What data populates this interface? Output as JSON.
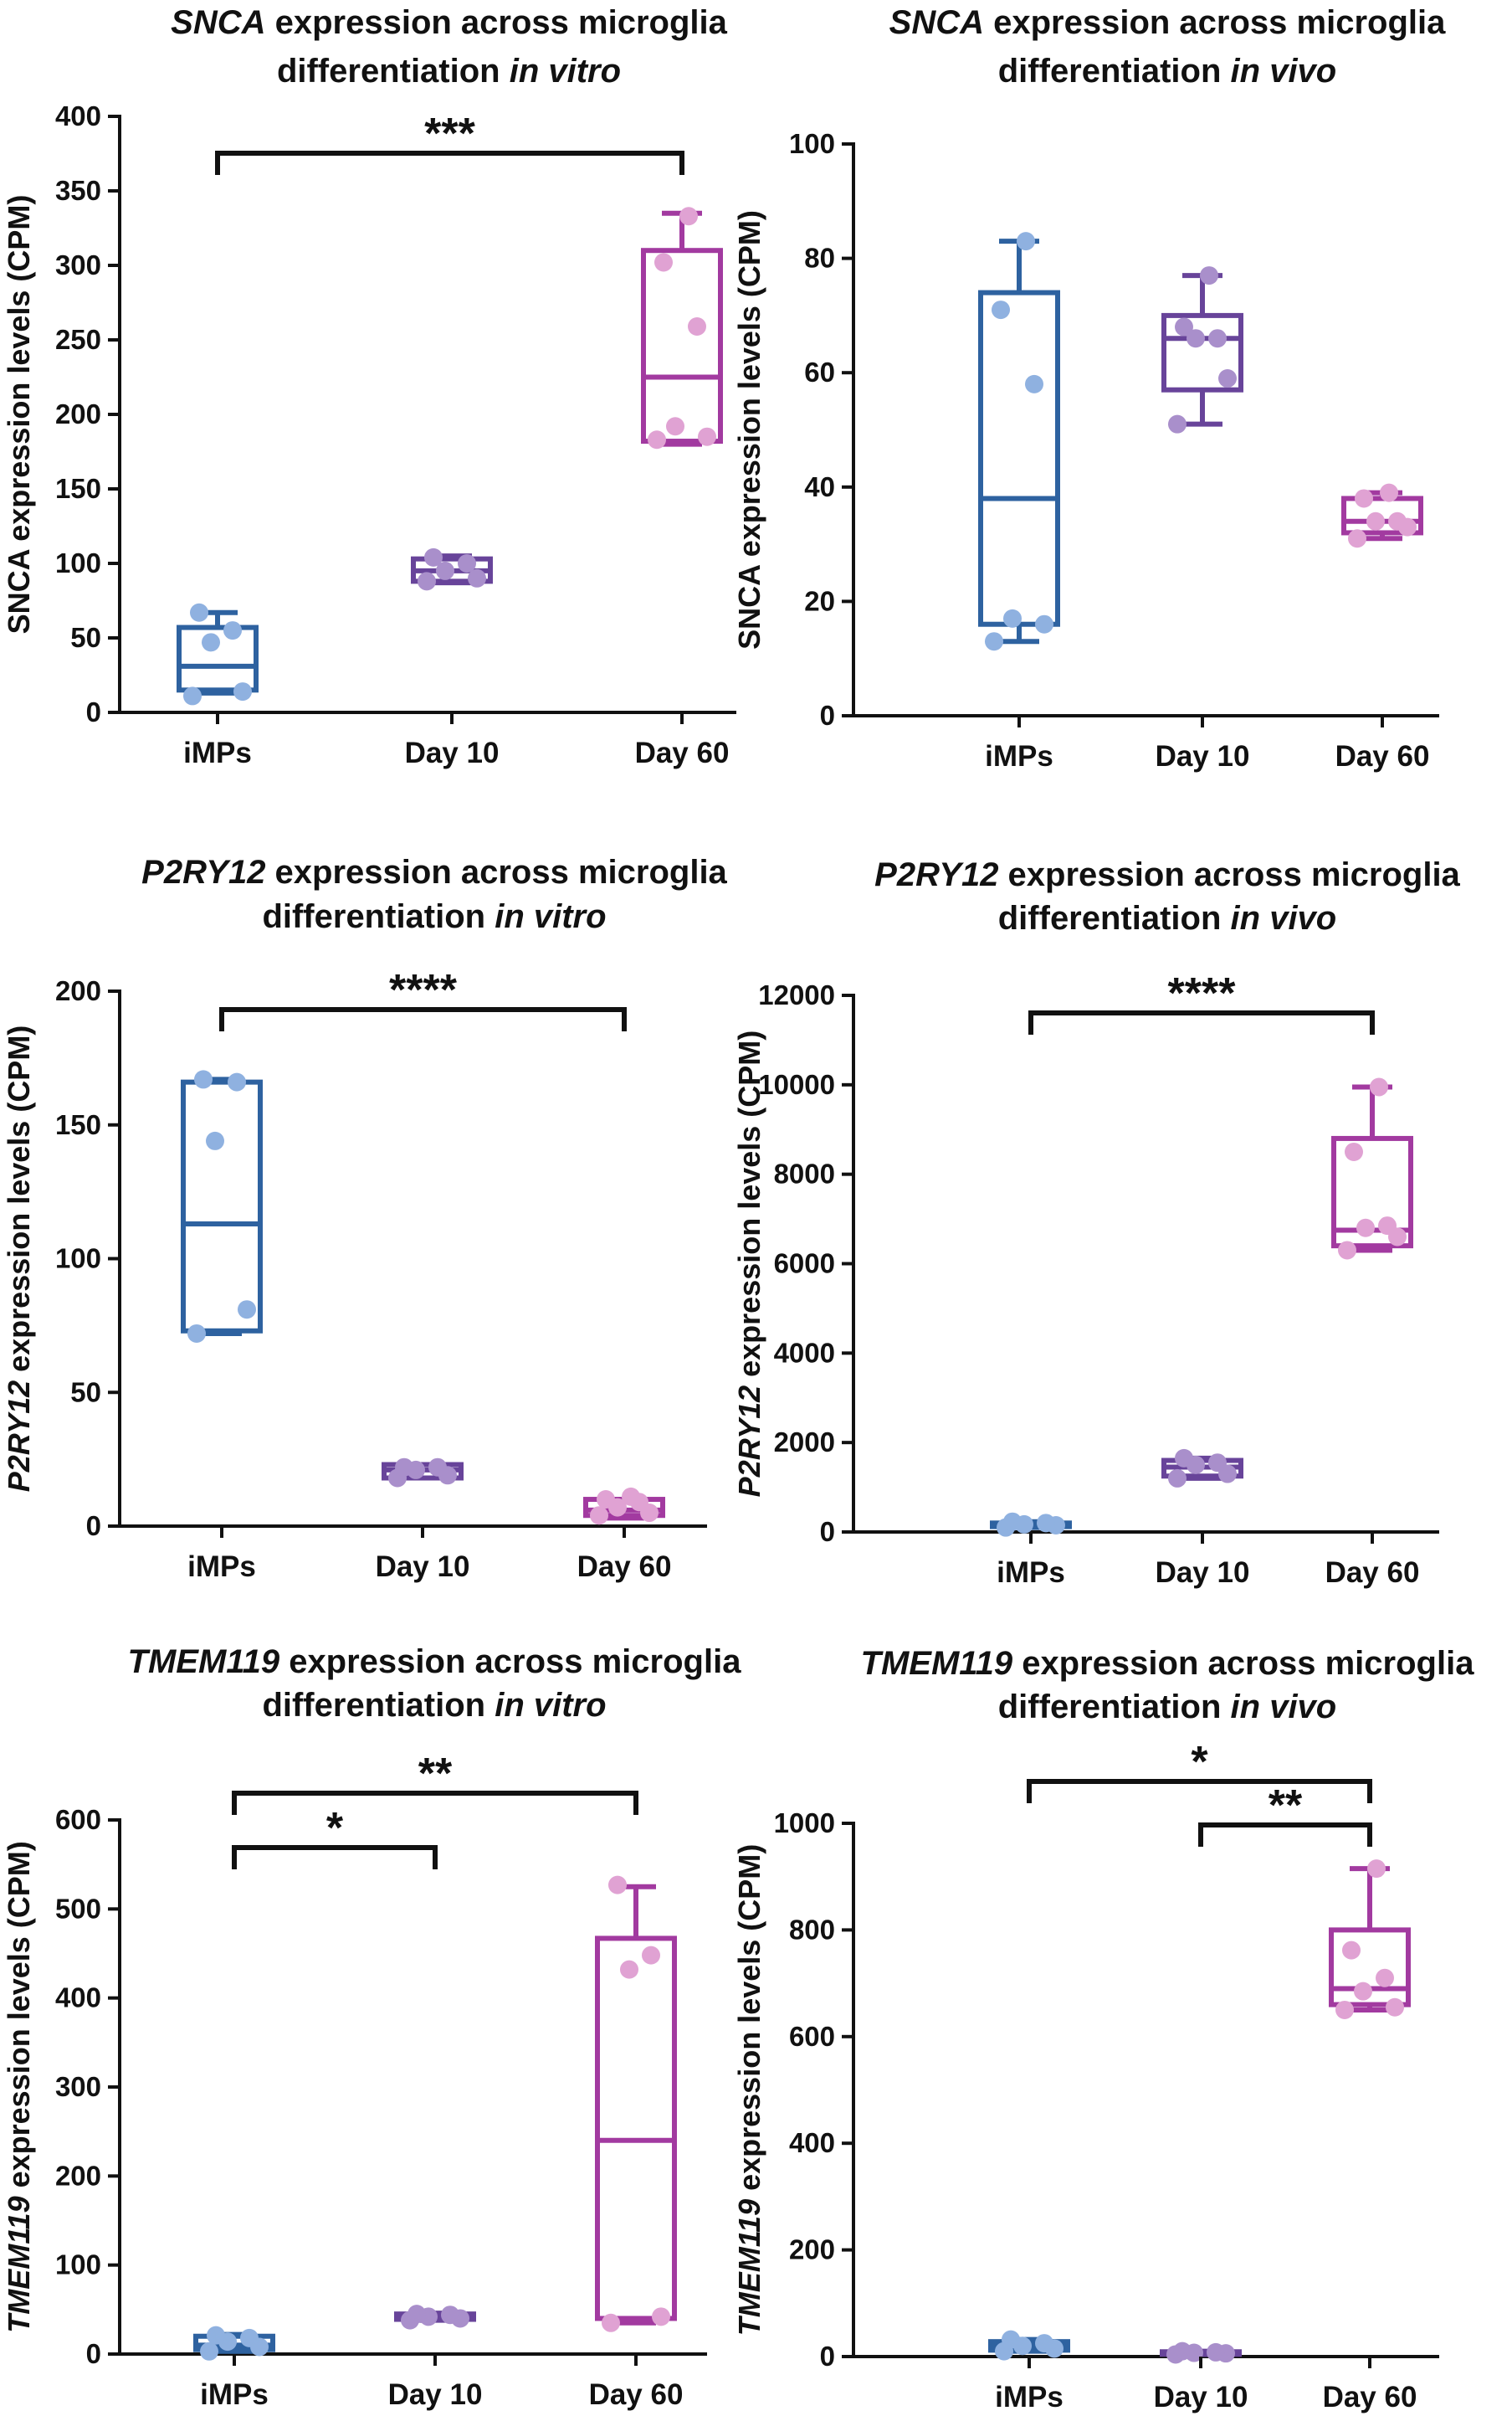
{
  "chart_data": [
    {
      "type": "box",
      "title_parts": [
        {
          "t": "SNCA",
          "i": true
        },
        {
          "t": " expression across microglia",
          "i": false
        }
      ],
      "title_line2": [
        {
          "t": "differentiation ",
          "i": false
        },
        {
          "t": "in vitro",
          "i": true
        }
      ],
      "ylabel_parts": [
        {
          "t": "SNCA expression levels (CPM)",
          "i": false
        }
      ],
      "ylim": [
        0,
        400
      ],
      "yticks": [
        "0",
        "50",
        "100",
        "150",
        "200",
        "250",
        "300",
        "350",
        "400"
      ],
      "categories": [
        "iMPs",
        "Day 10",
        "Day 60"
      ],
      "boxes": [
        {
          "min": 13,
          "q1": 15,
          "median": 31,
          "q3": 57,
          "max": 67
        },
        {
          "min": 87,
          "q1": 88,
          "median": 95,
          "q3": 103,
          "max": 105
        },
        {
          "min": 180,
          "q1": 182,
          "median": 225,
          "q3": 310,
          "max": 335
        }
      ],
      "points": [
        [
          11,
          14,
          47,
          55,
          67
        ],
        [
          88,
          90,
          95,
          100,
          104
        ],
        [
          183,
          185,
          192,
          259,
          302,
          333
        ]
      ],
      "significance": [
        {
          "from": 0,
          "to": 2,
          "label": "***",
          "level": 0
        }
      ]
    },
    {
      "type": "box",
      "title_parts": [
        {
          "t": "SNCA",
          "i": true
        },
        {
          "t": " expression across microglia",
          "i": false
        }
      ],
      "title_line2": [
        {
          "t": "differentiation ",
          "i": false
        },
        {
          "t": "in vivo",
          "i": true
        }
      ],
      "ylabel_parts": [
        {
          "t": "SNCA expression levels (CPM)",
          "i": false
        }
      ],
      "ylim": [
        0,
        100
      ],
      "yticks": [
        "0",
        "20",
        "40",
        "60",
        "80",
        "100"
      ],
      "categories": [
        "iMPs",
        "Day 10",
        "Day 60"
      ],
      "boxes": [
        {
          "min": 13,
          "q1": 16,
          "median": 38,
          "q3": 74,
          "max": 83
        },
        {
          "min": 51,
          "q1": 57,
          "median": 66,
          "q3": 70,
          "max": 77
        },
        {
          "min": 31,
          "q1": 32,
          "median": 34,
          "q3": 38,
          "max": 39
        }
      ],
      "points": [
        [
          13,
          16,
          17,
          58,
          71,
          83
        ],
        [
          51,
          59,
          66,
          66,
          68,
          77
        ],
        [
          31,
          33,
          34,
          34,
          38,
          39
        ]
      ],
      "significance": []
    },
    {
      "type": "box",
      "title_parts": [
        {
          "t": "P2RY12",
          "i": true
        },
        {
          "t": " expression across microglia",
          "i": false
        }
      ],
      "title_line2": [
        {
          "t": "differentiation ",
          "i": false
        },
        {
          "t": "in vitro",
          "i": true
        }
      ],
      "ylabel_parts": [
        {
          "t": "P2RY12",
          "i": true
        },
        {
          "t": " expression levels (CPM)",
          "i": false
        }
      ],
      "ylim": [
        0,
        200
      ],
      "yticks": [
        "0",
        "50",
        "100",
        "150",
        "200"
      ],
      "categories": [
        "iMPs",
        "Day 10",
        "Day 60"
      ],
      "boxes": [
        {
          "min": 72,
          "q1": 73,
          "median": 113,
          "q3": 166,
          "max": 167
        },
        {
          "min": 18,
          "q1": 18,
          "median": 21,
          "q3": 23,
          "max": 23
        },
        {
          "min": 3,
          "q1": 4,
          "median": 6,
          "q3": 10,
          "max": 10
        }
      ],
      "points": [
        [
          72,
          81,
          144,
          166,
          167
        ],
        [
          18,
          19,
          21,
          22,
          22
        ],
        [
          4,
          5,
          7,
          9,
          10,
          11
        ]
      ],
      "significance": [
        {
          "from": 0,
          "to": 2,
          "label": "****",
          "level": 0
        }
      ]
    },
    {
      "type": "box",
      "title_parts": [
        {
          "t": "P2RY12",
          "i": true
        },
        {
          "t": " expression across microglia",
          "i": false
        }
      ],
      "title_line2": [
        {
          "t": "differentiation ",
          "i": false
        },
        {
          "t": "in vivo",
          "i": true
        }
      ],
      "ylabel_parts": [
        {
          "t": "P2RY12",
          "i": true
        },
        {
          "t": " expression levels (CPM)",
          "i": false
        }
      ],
      "ylim": [
        0,
        12000
      ],
      "yticks": [
        "0",
        "2000",
        "4000",
        "6000",
        "8000",
        "10000",
        "12000"
      ],
      "categories": [
        "iMPs",
        "Day 10",
        "Day 60"
      ],
      "boxes": [
        {
          "min": 100,
          "q1": 120,
          "median": 160,
          "q3": 200,
          "max": 230
        },
        {
          "min": 1200,
          "q1": 1250,
          "median": 1450,
          "q3": 1600,
          "max": 1650
        },
        {
          "min": 6300,
          "q1": 6400,
          "median": 6750,
          "q3": 8800,
          "max": 9950
        }
      ],
      "points": [
        [
          100,
          150,
          170,
          200,
          230
        ],
        [
          1200,
          1300,
          1500,
          1550,
          1650
        ],
        [
          6300,
          6600,
          6800,
          6850,
          8500,
          9950
        ]
      ],
      "significance": [
        {
          "from": 0,
          "to": 2,
          "label": "****",
          "level": 0
        }
      ]
    },
    {
      "type": "box",
      "title_parts": [
        {
          "t": "TMEM119",
          "i": true
        },
        {
          "t": " expression across microglia",
          "i": false
        }
      ],
      "title_line2": [
        {
          "t": "differentiation ",
          "i": false
        },
        {
          "t": "in vitro",
          "i": true
        }
      ],
      "ylabel_parts": [
        {
          "t": "TMEM119",
          "i": true
        },
        {
          "t": " expression levels (CPM)",
          "i": false
        }
      ],
      "ylim": [
        0,
        600
      ],
      "yticks": [
        "0",
        "100",
        "200",
        "300",
        "400",
        "500",
        "600"
      ],
      "categories": [
        "iMPs",
        "Day 10",
        "Day 60"
      ],
      "boxes": [
        {
          "min": 3,
          "q1": 5,
          "median": 10,
          "q3": 20,
          "max": 22
        },
        {
          "min": 38,
          "q1": 39,
          "median": 42,
          "q3": 45,
          "max": 46
        },
        {
          "min": 35,
          "q1": 40,
          "median": 240,
          "q3": 467,
          "max": 525
        }
      ],
      "points": [
        [
          3,
          8,
          14,
          18,
          21
        ],
        [
          38,
          40,
          42,
          44,
          45
        ],
        [
          35,
          42,
          432,
          448,
          527
        ]
      ],
      "significance": [
        {
          "from": 0,
          "to": 1,
          "label": "*",
          "level": 0
        },
        {
          "from": 0,
          "to": 2,
          "label": "**",
          "level": 1
        }
      ]
    },
    {
      "type": "box",
      "title_parts": [
        {
          "t": "TMEM119",
          "i": true
        },
        {
          "t": " expression across microglia",
          "i": false
        }
      ],
      "title_line2": [
        {
          "t": "differentiation ",
          "i": false
        },
        {
          "t": "in vivo",
          "i": true
        }
      ],
      "ylabel_parts": [
        {
          "t": "TMEM119",
          "i": true
        },
        {
          "t": " expression levels (CPM)",
          "i": false
        }
      ],
      "ylim": [
        0,
        1000
      ],
      "yticks": [
        "0",
        "200",
        "400",
        "600",
        "800",
        "1000"
      ],
      "categories": [
        "iMPs",
        "Day 10",
        "Day 60"
      ],
      "boxes": [
        {
          "min": 10,
          "q1": 12,
          "median": 20,
          "q3": 28,
          "max": 32
        },
        {
          "min": 4,
          "q1": 5,
          "median": 7,
          "q3": 9,
          "max": 10
        },
        {
          "min": 650,
          "q1": 660,
          "median": 690,
          "q3": 800,
          "max": 915
        }
      ],
      "points": [
        [
          10,
          15,
          20,
          25,
          32
        ],
        [
          4,
          6,
          7,
          8,
          10
        ],
        [
          650,
          655,
          685,
          710,
          762,
          915
        ]
      ],
      "significance": [
        {
          "from": 1,
          "to": 2,
          "label": "**",
          "level": 0
        },
        {
          "from": 0,
          "to": 2,
          "label": "*",
          "level": 1
        }
      ]
    }
  ],
  "colors": {
    "boxes": [
      "#2e62a0",
      "#68449a",
      "#a23aa0"
    ],
    "points": [
      "#8fb1e0",
      "#a98fcb",
      "#e0a2d3"
    ],
    "axis": "#111111"
  }
}
